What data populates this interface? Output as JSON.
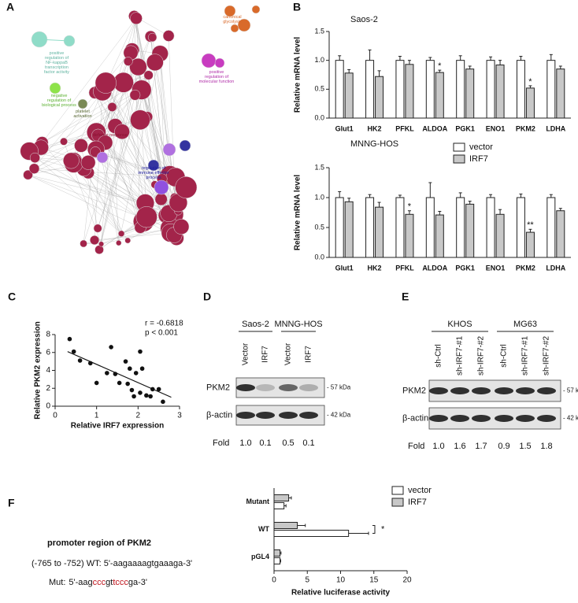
{
  "panels": [
    "A",
    "B",
    "C",
    "D",
    "E",
    "F"
  ],
  "network": {
    "labels": [
      "positive regulation of NF-kappaB transcription factor activity",
      "negative regulation of biological process",
      "platelet activation",
      "canonical glycolysis",
      "positive regulation of molecular function",
      "defense response",
      "regulation of immune effector process"
    ]
  },
  "chart_data": [
    {
      "type": "bar",
      "title": "Saos-2",
      "ylabel": "Relative mRNA level",
      "categories": [
        "Glut1",
        "HK2",
        "PFKL",
        "ALDOA",
        "PGK1",
        "ENO1",
        "PKM2",
        "LDHA"
      ],
      "ylim": [
        0,
        1.5
      ],
      "yticks": [
        {
          "value": 0,
          "label": "0.0"
        },
        0.5,
        {
          "value": 1,
          "label": "1.0"
        },
        1.5
      ],
      "series": [
        {
          "color": "#ffffff",
          "values": [
            1.0,
            1.0,
            1.0,
            1.0,
            1.0,
            1.0,
            1.0,
            1.0
          ],
          "errors": [
            0.08,
            0.18,
            0.07,
            0.05,
            0.08,
            0.06,
            0.07,
            0.1
          ]
        },
        {
          "color": "#c8c8c8",
          "values": [
            0.78,
            0.72,
            0.93,
            0.79,
            0.85,
            0.92,
            0.52,
            0.85
          ],
          "errors": [
            0.06,
            0.1,
            0.07,
            0.04,
            0.05,
            0.08,
            0.04,
            0.05
          ],
          "significance": [
            null,
            null,
            null,
            "*",
            null,
            null,
            "*",
            null
          ]
        }
      ]
    },
    {
      "type": "bar",
      "title": "MNNG-HOS",
      "ylabel": "Relative mRNA level",
      "legend": "upper right",
      "categories": [
        "Glut1",
        "HK2",
        "PFKL",
        "ALDOA",
        "PGK1",
        "ENO1",
        "PKM2",
        "LDHA"
      ],
      "ylim": [
        0,
        1.5
      ],
      "yticks": [
        {
          "value": 0,
          "label": "0.0"
        },
        0.5,
        {
          "value": 1,
          "label": "1.0"
        },
        1.5
      ],
      "series": [
        {
          "name": "vector",
          "color": "#ffffff",
          "values": [
            1.0,
            1.0,
            1.0,
            1.0,
            1.0,
            1.0,
            1.0,
            1.0
          ],
          "errors": [
            0.1,
            0.05,
            0.04,
            0.25,
            0.08,
            0.05,
            0.06,
            0.05
          ]
        },
        {
          "name": "IRF7",
          "color": "#c8c8c8",
          "values": [
            0.93,
            0.84,
            0.72,
            0.71,
            0.89,
            0.72,
            0.42,
            0.78
          ],
          "errors": [
            0.06,
            0.08,
            0.06,
            0.06,
            0.05,
            0.08,
            0.05,
            0.04
          ],
          "significance": [
            null,
            null,
            "*",
            null,
            null,
            null,
            "**",
            null
          ]
        }
      ]
    },
    {
      "type": "scatter",
      "xlabel": "Relative IRF7 expression",
      "ylabel": "Relative PKM2 expression",
      "annotations": [
        "r = -0.6818",
        "p < 0.001"
      ],
      "color": "#111111",
      "xlim": [
        0,
        3
      ],
      "xticks": [
        0,
        1,
        2,
        3
      ],
      "ylim": [
        0,
        8
      ],
      "yticks": [
        0,
        2,
        4,
        6,
        8
      ],
      "x": [
        0.35,
        0.45,
        0.6,
        0.85,
        1.35,
        1.0,
        1.25,
        1.45,
        1.7,
        2.05,
        1.55,
        1.75,
        1.85,
        1.95,
        2.05,
        2.2,
        2.3,
        2.1,
        2.5,
        2.6,
        1.8,
        2.35,
        1.9
      ],
      "y": [
        7.5,
        6.1,
        5.1,
        4.8,
        6.6,
        2.6,
        3.7,
        3.6,
        5.0,
        6.1,
        2.6,
        2.5,
        1.8,
        3.7,
        1.5,
        1.2,
        1.1,
        4.2,
        1.9,
        0.5,
        4.2,
        1.9,
        1.1
      ],
      "fit": {
        "x": [
          0.3,
          2.8
        ],
        "y": [
          6.1,
          1.0
        ]
      }
    },
    {
      "type": "barh",
      "xlabel": "Relative luciferase activity",
      "legend": "upper right",
      "categories": [
        "Mutant",
        "WT",
        "pGL4"
      ],
      "xlim": [
        0,
        20
      ],
      "xticks": [
        0,
        5,
        10,
        15,
        20
      ],
      "series": [
        {
          "name": "vector",
          "color": "#ffffff",
          "values": [
            1.5,
            11.2,
            0.9
          ],
          "errors": [
            0.3,
            3.0,
            0.1
          ]
        },
        {
          "name": "IRF7",
          "color": "#c8c8c8",
          "values": [
            2.2,
            3.5,
            0.9
          ],
          "errors": [
            0.4,
            1.2,
            0.15
          ]
        }
      ],
      "annotation": {
        "text": "*",
        "category": "WT"
      }
    }
  ],
  "blots": [
    {
      "groups": [
        {
          "name": "Saos-2",
          "lanes": [
            "Vector",
            "IRF7"
          ]
        },
        {
          "name": "MNNG-HOS",
          "lanes": [
            "Vector",
            "IRF7"
          ]
        }
      ],
      "rows": [
        {
          "name": "PKM2",
          "size": "- 57 kDa"
        },
        {
          "name": "β-actin",
          "size": "- 42 kDa"
        }
      ],
      "fold_label": "Fold",
      "fold": [
        "1.0",
        "0.1",
        "0.5",
        "0.1"
      ]
    },
    {
      "groups": [
        {
          "name": "KHOS",
          "lanes": [
            "sh-Ctrl",
            "sh-IRF7-#1",
            "sh-IRF7-#2"
          ]
        },
        {
          "name": "MG63",
          "lanes": [
            "sh-Ctrl",
            "sh-IRF7-#1",
            "sh-IRF7-#2"
          ]
        }
      ],
      "rows": [
        {
          "name": "PKM2",
          "size": "- 57 kDa"
        },
        {
          "name": "β-actin",
          "size": "- 42 kDa"
        }
      ],
      "fold_label": "Fold",
      "fold": [
        "1.0",
        "1.6",
        "1.7",
        "0.9",
        "1.5",
        "1.8"
      ]
    }
  ],
  "promoter": {
    "title": "promoter region of PKM2",
    "wt": "(-765 to -752) WT: 5'-aagaaaagtgaaaga-3'",
    "mut_label": "Mut:",
    "mut": [
      {
        "text": "5'-aag",
        "highlight": false
      },
      {
        "text": "ccc",
        "highlight": true
      },
      {
        "text": "gt",
        "highlight": false
      },
      {
        "text": "tccc",
        "highlight": true
      },
      {
        "text": "ga-3'",
        "highlight": false
      }
    ]
  }
}
